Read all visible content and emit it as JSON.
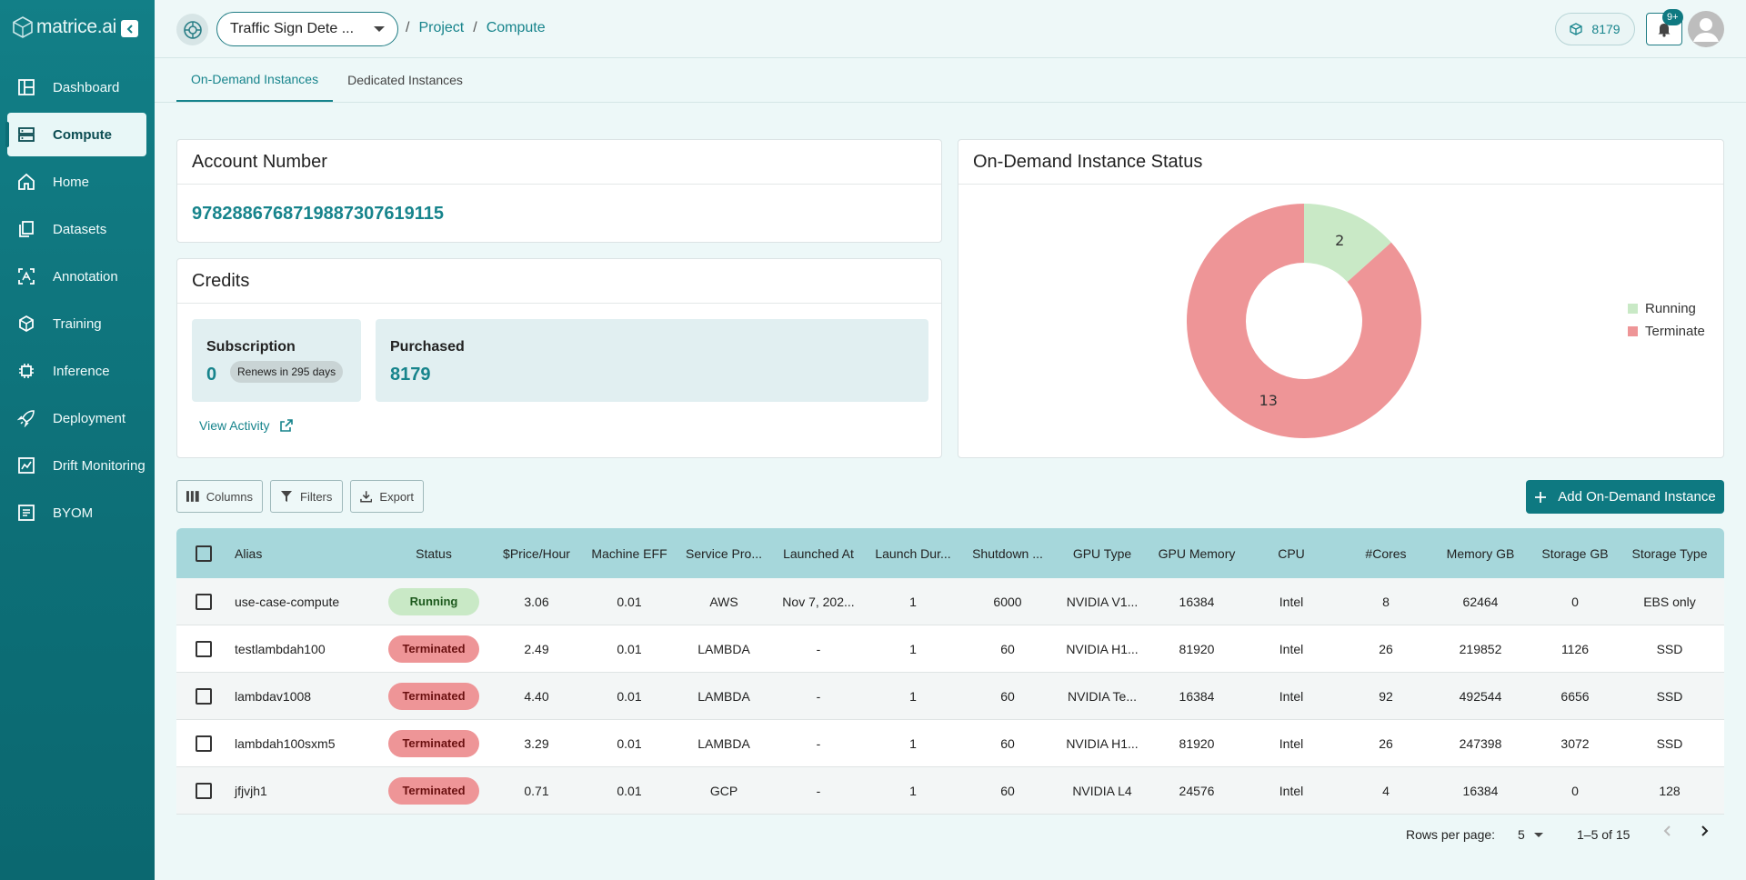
{
  "app": {
    "logo_text": "matrice.ai"
  },
  "sidebar": {
    "items": [
      {
        "label": "Dashboard",
        "icon": "dashboard-icon"
      },
      {
        "label": "Compute",
        "icon": "compute-icon",
        "active": true
      },
      {
        "label": "Home",
        "icon": "home-icon"
      },
      {
        "label": "Datasets",
        "icon": "datasets-icon"
      },
      {
        "label": "Annotation",
        "icon": "annotation-icon"
      },
      {
        "label": "Training",
        "icon": "training-icon"
      },
      {
        "label": "Inference",
        "icon": "inference-icon"
      },
      {
        "label": "Deployment",
        "icon": "deployment-icon"
      },
      {
        "label": "Drift Monitoring",
        "icon": "drift-icon"
      },
      {
        "label": "BYOM",
        "icon": "byom-icon"
      }
    ]
  },
  "header": {
    "project_name": "Traffic Sign Dete ...",
    "breadcrumbs": [
      "Project",
      "Compute"
    ],
    "credits": "8179",
    "notifications_badge": "9+"
  },
  "tabs": [
    {
      "label": "On-Demand Instances",
      "active": true
    },
    {
      "label": "Dedicated Instances",
      "active": false
    }
  ],
  "account": {
    "title": "Account Number",
    "number": "97828867687198873076191​15"
  },
  "credits_card": {
    "title": "Credits",
    "subscription_label": "Subscription",
    "subscription_value": "0",
    "renew_text": "Renews in 295 days",
    "purchased_label": "Purchased",
    "purchased_value": "8179",
    "view_activity": "View Activity"
  },
  "status_card": {
    "title": "On-Demand Instance Status"
  },
  "chart_data": {
    "type": "pie",
    "donut": true,
    "categories": [
      "Running",
      "Terminate"
    ],
    "values": [
      2,
      13
    ],
    "colors": [
      "#c9e9c6",
      "#ee9597"
    ],
    "legend_position": "right"
  },
  "toolbar": {
    "columns": "Columns",
    "filters": "Filters",
    "export": "Export",
    "add": "Add On-Demand Instance"
  },
  "table": {
    "headers": [
      "Alias",
      "Status",
      "$Price/Hour",
      "Machine EFF",
      "Service Pro...",
      "Launched At",
      "Launch Dur...",
      "Shutdown ...",
      "GPU Type",
      "GPU Memory",
      "CPU",
      "#Cores",
      "Memory GB",
      "Storage GB",
      "Storage Type"
    ],
    "rows": [
      [
        "use-case-compute",
        "Running",
        "3.06",
        "0.01",
        "AWS",
        "Nov 7, 202...",
        "1",
        "6000",
        "NVIDIA V1...",
        "16384",
        "Intel",
        "8",
        "62464",
        "0",
        "EBS only"
      ],
      [
        "testlambdah100",
        "Terminated",
        "2.49",
        "0.01",
        "LAMBDA",
        "-",
        "1",
        "60",
        "NVIDIA H1...",
        "81920",
        "Intel",
        "26",
        "219852",
        "1126",
        "SSD"
      ],
      [
        "lambdav1008",
        "Terminated",
        "4.40",
        "0.01",
        "LAMBDA",
        "-",
        "1",
        "60",
        "NVIDIA Te...",
        "16384",
        "Intel",
        "92",
        "492544",
        "6656",
        "SSD"
      ],
      [
        "lambdah100sxm5",
        "Terminated",
        "3.29",
        "0.01",
        "LAMBDA",
        "-",
        "1",
        "60",
        "NVIDIA H1...",
        "81920",
        "Intel",
        "26",
        "247398",
        "3072",
        "SSD"
      ],
      [
        "jfjvjh1",
        "Terminated",
        "0.71",
        "0.01",
        "GCP",
        "-",
        "1",
        "60",
        "NVIDIA L4",
        "24576",
        "Intel",
        "4",
        "16384",
        "0",
        "128"
      ]
    ]
  },
  "pagination": {
    "rows_label": "Rows per page:",
    "rows_value": "5",
    "range": "1–5 of 15"
  }
}
